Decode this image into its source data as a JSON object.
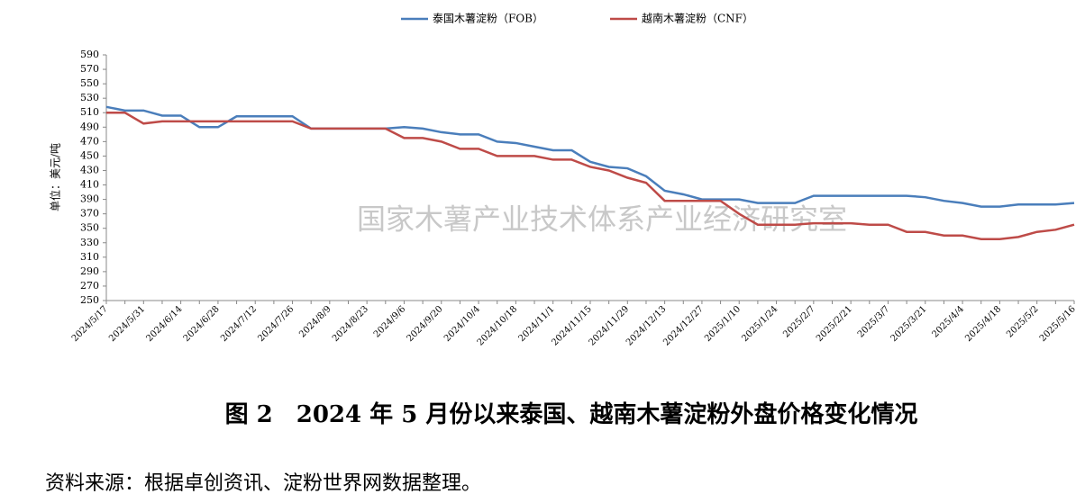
{
  "chart_data": {
    "type": "line",
    "categories": [
      "2024/5/17",
      null,
      "2024/5/31",
      null,
      "2024/6/14",
      null,
      "2024/6/28",
      null,
      "2024/7/12",
      null,
      "2024/7/26",
      null,
      "2024/8/9",
      null,
      "2024/8/23",
      null,
      "2024/9/6",
      null,
      "2024/9/20",
      null,
      "2024/10/4",
      null,
      "2024/10/18",
      null,
      "2024/11/1",
      null,
      "2024/11/15",
      null,
      "2024/11/29",
      null,
      "2024/12/13",
      null,
      "2024/12/27",
      null,
      "2025/1/10",
      null,
      "2025/1/24",
      null,
      "2025/2/7",
      null,
      "2025/2/21",
      null,
      "2025/3/7",
      null,
      "2025/3/21",
      null,
      "2025/4/4",
      null,
      "2025/4/18",
      null,
      "2025/5/2",
      null,
      "2025/5/16"
    ],
    "series": [
      {
        "name": "泰国木薯淀粉（FOB）",
        "color": "#4a7ebb",
        "values": [
          518,
          513,
          513,
          506,
          506,
          490,
          490,
          505,
          505,
          505,
          505,
          488,
          488,
          488,
          488,
          488,
          490,
          488,
          483,
          480,
          480,
          470,
          468,
          463,
          458,
          458,
          442,
          435,
          433,
          422,
          402,
          397,
          390,
          390,
          390,
          385,
          385,
          385,
          395,
          395,
          395,
          395,
          395,
          395,
          393,
          388,
          385,
          380,
          380,
          383,
          383,
          383,
          385
        ]
      },
      {
        "name": "越南木薯淀粉（CNF）",
        "color": "#be4b48",
        "values": [
          510,
          510,
          495,
          498,
          498,
          498,
          498,
          498,
          498,
          498,
          498,
          488,
          488,
          488,
          488,
          488,
          475,
          475,
          470,
          460,
          460,
          450,
          450,
          450,
          445,
          445,
          435,
          430,
          420,
          413,
          388,
          388,
          388,
          388,
          370,
          355,
          355,
          355,
          357,
          357,
          357,
          355,
          355,
          345,
          345,
          340,
          340,
          335,
          335,
          338,
          345,
          348,
          355
        ]
      }
    ],
    "y_label": "单位：美元/吨",
    "ylim": [
      250,
      590
    ],
    "yticks": [
      250,
      270,
      290,
      310,
      330,
      350,
      370,
      390,
      410,
      430,
      450,
      470,
      490,
      510,
      530,
      550,
      570,
      590
    ],
    "watermark": "国家木薯产业技术体系产业经济研究室",
    "caption": "图 2　2024 年 5 月份以来泰国、越南木薯淀粉外盘价格变化情况",
    "source": "资料来源：根据卓创资讯、淀粉世界网数据整理。"
  }
}
